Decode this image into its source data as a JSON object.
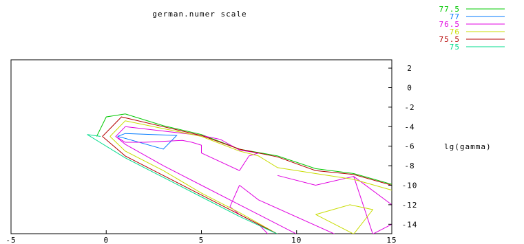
{
  "chart_data": {
    "type": "contour",
    "title": "german.numer scale",
    "xlabel": "",
    "ylabel": "lg(gamma)",
    "xlim": [
      -5,
      15
    ],
    "ylim": [
      -15,
      3
    ],
    "x_ticks": [
      {
        "value": -5,
        "label": "-5"
      },
      {
        "value": 0,
        "label": "0"
      },
      {
        "value": 5,
        "label": "5"
      },
      {
        "value": 10,
        "label": "10"
      },
      {
        "value": 15,
        "label": "15"
      }
    ],
    "y_ticks": [
      {
        "value": 2,
        "label": "2"
      },
      {
        "value": 0,
        "label": "0"
      },
      {
        "value": -2,
        "label": "-2"
      },
      {
        "value": -4,
        "label": "-4"
      },
      {
        "value": -6,
        "label": "-6"
      },
      {
        "value": -8,
        "label": "-8"
      },
      {
        "value": -10,
        "label": "-10"
      },
      {
        "value": -12,
        "label": "-12"
      },
      {
        "value": -14,
        "label": "-14"
      }
    ],
    "legend_position": "top-right",
    "series": [
      {
        "name": "77.5",
        "color": "#00c800",
        "lines": [
          [
            [
              -0.5,
              -5.0
            ],
            [
              0.0,
              -3.0
            ],
            [
              1.0,
              -2.7
            ],
            [
              3.0,
              -3.9
            ],
            [
              5.0,
              -4.8
            ],
            [
              7.0,
              -6.3
            ],
            [
              9.0,
              -7.0
            ],
            [
              11.0,
              -8.3
            ],
            [
              13.0,
              -8.8
            ],
            [
              15.0,
              -9.9
            ]
          ]
        ]
      },
      {
        "name": "77",
        "color": "#0078ff",
        "lines": [
          [
            [
              0.6,
              -5.0
            ],
            [
              1.0,
              -4.7
            ],
            [
              3.7,
              -4.9
            ],
            [
              3.0,
              -6.3
            ],
            [
              1.0,
              -5.2
            ],
            [
              0.6,
              -5.0
            ]
          ]
        ]
      },
      {
        "name": "76.5",
        "color": "#e000e0",
        "lines": [
          [
            [
              1.0,
              -4.0
            ],
            [
              5.0,
              -4.9
            ],
            [
              6.0,
              -5.3
            ],
            [
              7.0,
              -6.4
            ],
            [
              8.0,
              -6.7
            ],
            [
              7.5,
              -7.0
            ],
            [
              7.0,
              -8.5
            ],
            [
              5.0,
              -6.7
            ],
            [
              5.0,
              -5.9
            ],
            [
              4.5,
              -5.6
            ],
            [
              4.0,
              -5.4
            ],
            [
              2.0,
              -5.6
            ],
            [
              1.0,
              -5.6
            ],
            [
              0.5,
              -5.0
            ],
            [
              1.0,
              -4.0
            ]
          ],
          [
            [
              0.5,
              -5.0
            ],
            [
              1.0,
              -5.8
            ],
            [
              3.0,
              -8.0
            ],
            [
              5.0,
              -10.0
            ],
            [
              7.0,
              -12.0
            ],
            [
              9.0,
              -14.0
            ],
            [
              10.0,
              -15.0
            ]
          ],
          [
            [
              7.0,
              -10.0
            ],
            [
              6.5,
              -12.2
            ],
            [
              7.0,
              -13.0
            ],
            [
              8.0,
              -14.0
            ],
            [
              8.5,
              -15.0
            ]
          ],
          [
            [
              7.0,
              -10.0
            ],
            [
              8.0,
              -11.5
            ],
            [
              12.0,
              -15.0
            ]
          ],
          [
            [
              9.0,
              -9.0
            ],
            [
              11.0,
              -10.0
            ],
            [
              13.0,
              -9.1
            ],
            [
              15.0,
              -12.0
            ]
          ],
          [
            [
              13.0,
              -9.1
            ],
            [
              14.0,
              -15.0
            ]
          ],
          [
            [
              14.0,
              -15.0
            ],
            [
              15.0,
              -14.0
            ]
          ]
        ]
      },
      {
        "name": "76",
        "color": "#c8dc00",
        "lines": [
          [
            [
              0.2,
              -5.0
            ],
            [
              1.0,
              -3.4
            ],
            [
              3.0,
              -4.2
            ],
            [
              5.0,
              -5.0
            ],
            [
              7.0,
              -6.5
            ],
            [
              8.0,
              -7.0
            ],
            [
              9.0,
              -8.2
            ],
            [
              11.0,
              -8.8
            ],
            [
              13.0,
              -9.4
            ],
            [
              15.0,
              -10.5
            ]
          ],
          [
            [
              0.2,
              -5.0
            ],
            [
              1.0,
              -6.5
            ],
            [
              3.0,
              -8.5
            ],
            [
              5.0,
              -10.8
            ],
            [
              7.0,
              -12.8
            ],
            [
              9.0,
              -15.0
            ]
          ],
          [
            [
              11.0,
              -13.0
            ],
            [
              12.8,
              -12.0
            ],
            [
              14.0,
              -12.5
            ],
            [
              13.0,
              -15.0
            ],
            [
              11.0,
              -13.0
            ]
          ]
        ]
      },
      {
        "name": "75.5",
        "color": "#b40000",
        "lines": [
          [
            [
              -0.2,
              -5.0
            ],
            [
              0.8,
              -3.0
            ],
            [
              3.0,
              -4.0
            ],
            [
              5.0,
              -4.9
            ],
            [
              7.0,
              -6.3
            ],
            [
              9.0,
              -7.1
            ],
            [
              11.0,
              -8.5
            ],
            [
              13.0,
              -8.9
            ],
            [
              15.0,
              -10.0
            ]
          ],
          [
            [
              -0.2,
              -5.0
            ],
            [
              1.0,
              -7.0
            ],
            [
              3.0,
              -9.0
            ],
            [
              5.0,
              -11.0
            ],
            [
              7.0,
              -13.0
            ],
            [
              9.0,
              -15.0
            ]
          ]
        ]
      },
      {
        "name": "75",
        "color": "#00dc8c",
        "lines": [
          [
            [
              -0.3,
              -5.0
            ],
            [
              -1.0,
              -4.8
            ],
            [
              1.0,
              -7.2
            ],
            [
              3.0,
              -9.2
            ],
            [
              5.0,
              -11.2
            ],
            [
              7.0,
              -13.2
            ],
            [
              9.0,
              -15.0
            ]
          ]
        ]
      }
    ]
  }
}
